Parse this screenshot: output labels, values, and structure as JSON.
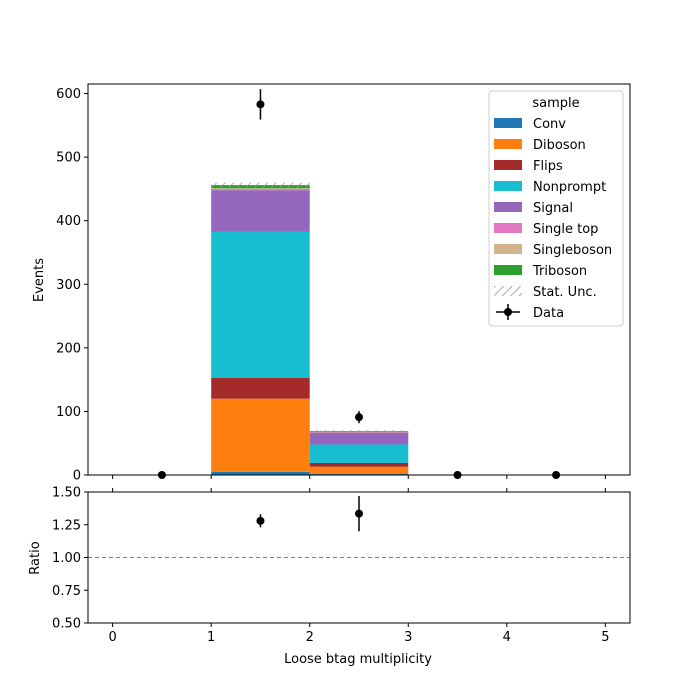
{
  "chart_data": {
    "type": "bar",
    "stacked": true,
    "bin_edges": [
      0,
      1,
      2,
      3,
      4,
      5
    ],
    "xlabel": "Loose btag multiplicity",
    "xticks": [
      "0",
      "1",
      "2",
      "3",
      "4",
      "5"
    ],
    "xlim": [
      -0.25,
      5.25
    ],
    "main_panel": {
      "ylabel": "Events",
      "ylim": [
        0,
        615
      ],
      "yticks": [
        "0",
        "100",
        "200",
        "300",
        "400",
        "500",
        "600"
      ],
      "legend": {
        "title": "sample",
        "placement": "upper right"
      },
      "series": [
        {
          "name": "Conv",
          "color": "#1f77b4",
          "values": [
            0,
            5,
            2,
            0,
            0
          ]
        },
        {
          "name": "Diboson",
          "color": "#ff7f0e",
          "values": [
            0,
            115,
            11,
            0,
            0
          ]
        },
        {
          "name": "Flips",
          "color": "#a52a2a",
          "values": [
            0,
            33,
            6,
            0,
            0
          ]
        },
        {
          "name": "Nonprompt",
          "color": "#17becf",
          "values": [
            0,
            230,
            29,
            0,
            0
          ]
        },
        {
          "name": "Signal",
          "color": "#9467bd",
          "values": [
            0,
            65,
            19,
            0,
            0
          ]
        },
        {
          "name": "Single top",
          "color": "#e377c2",
          "values": [
            0,
            2,
            0.5,
            0,
            0
          ]
        },
        {
          "name": "Singleboson",
          "color": "#d2b48c",
          "values": [
            0,
            1,
            0.3,
            0,
            0
          ]
        },
        {
          "name": "Triboson",
          "color": "#2ca02c",
          "values": [
            0,
            5,
            1.2,
            0,
            0
          ]
        }
      ],
      "stat_unc": {
        "name": "Stat. Unc.",
        "color": "#999999",
        "half_width": [
          0,
          4,
          1.5,
          0,
          0
        ]
      },
      "data": {
        "name": "Data",
        "color": "#000000",
        "x": [
          0.5,
          1.5,
          2.5,
          3.5,
          4.5
        ],
        "y": [
          0,
          583,
          91,
          0,
          0
        ],
        "yerr": [
          0,
          24,
          9.5,
          0,
          0
        ]
      }
    },
    "ratio_panel": {
      "ylabel": "Ratio",
      "ylim": [
        0.5,
        1.5
      ],
      "yticks": [
        "0.50",
        "0.75",
        "1.00",
        "1.25",
        "1.50"
      ],
      "reference_line": 1.0,
      "points": {
        "x": [
          1.5,
          2.5
        ],
        "y": [
          1.28,
          1.335
        ],
        "yerr": [
          0.05,
          0.135
        ]
      }
    }
  }
}
